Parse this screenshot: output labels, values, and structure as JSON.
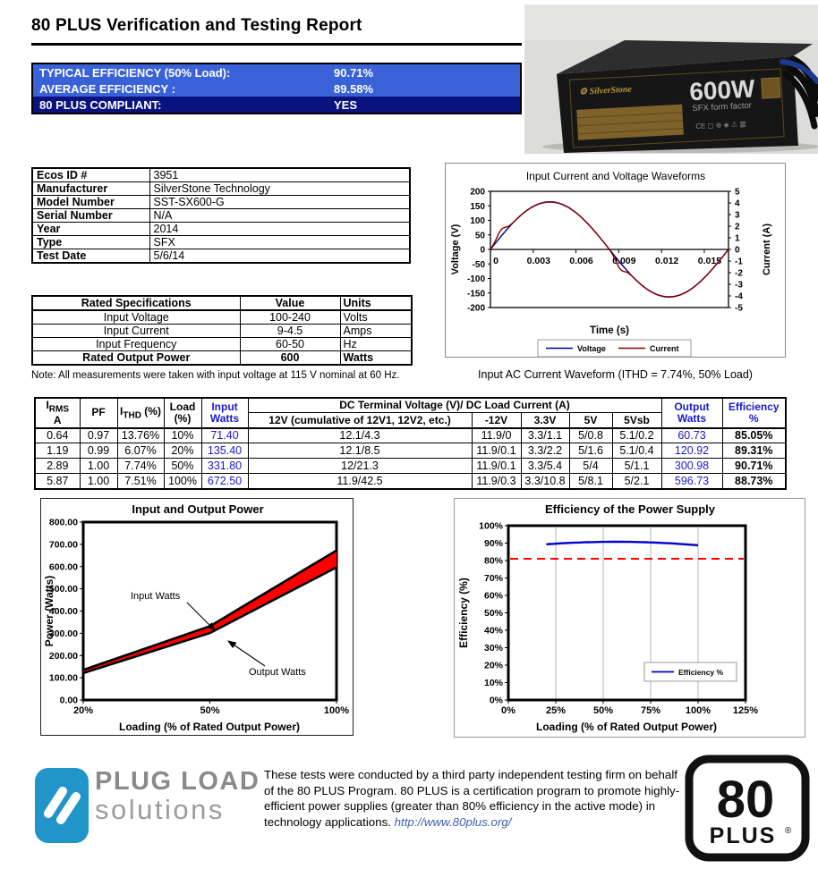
{
  "page": {
    "title": "80 PLUS Verification and Testing Report"
  },
  "summary_banner": {
    "rows": [
      {
        "label": "TYPICAL EFFICIENCY (50% Load):",
        "value": "90.71%"
      },
      {
        "label": "AVERAGE EFFICIENCY :",
        "value": "89.58%"
      },
      {
        "label": "80 PLUS COMPLIANT:",
        "value": "YES"
      }
    ],
    "row_color": "#3a62d8",
    "compliant_row_color": "#0a1280"
  },
  "product_photo": {
    "wattage": "600W",
    "form_factor": "SFX form factor",
    "brand": "SilverStone"
  },
  "product_info": {
    "rows": [
      [
        "Ecos ID #",
        "3951"
      ],
      [
        "Manufacturer",
        "SilverStone Technology"
      ],
      [
        "Model Number",
        "SST-SX600-G"
      ],
      [
        "Serial Number",
        "N/A"
      ],
      [
        "Year",
        "2014"
      ],
      [
        "Type",
        "SFX"
      ],
      [
        "Test Date",
        "5/6/14"
      ]
    ]
  },
  "rated_specs": {
    "headers": [
      "Rated Specifications",
      "Value",
      "Units"
    ],
    "rows": [
      [
        "Input Voltage",
        "100-240",
        "Volts"
      ],
      [
        "Input Current",
        "9-4.5",
        "Amps"
      ],
      [
        "Input Frequency",
        "60-50",
        "Hz"
      ],
      [
        "Rated Output Power",
        "600",
        "Watts"
      ]
    ],
    "note": "Note: All measurements were taken with input voltage at 115 V nominal at 60 Hz."
  },
  "measurements_table": {
    "headers": {
      "irms_i": "I",
      "irms_sub": "RMS",
      "irms_unit": "A",
      "pf": "PF",
      "ithd_i": "I",
      "ithd_sub": "THD",
      "ithd_rest": " (%)",
      "load_l1": "Load",
      "load_l2": "(%)",
      "input_l1": "Input",
      "input_l2": "Watts",
      "dc_group": "DC Terminal Voltage (V)/ DC Load Current (A)",
      "sub_12v": "12V (cumulative of 12V1, 12V2, etc.)",
      "sub_m12v": "-12V",
      "sub_33v": "3.3V",
      "sub_5v": "5V",
      "sub_5vsb": "5Vsb",
      "output_l1": "Output",
      "output_l2": "Watts",
      "eff_l1": "Efficiency",
      "eff_l2": "%"
    },
    "rows": [
      [
        "0.64",
        "0.97",
        "13.76%",
        "10%",
        "71.40",
        "12.1/4.3",
        "11.9/0",
        "3.3/1.1",
        "5/0.8",
        "5.1/0.2",
        "60.73",
        "85.05%"
      ],
      [
        "1.19",
        "0.99",
        "6.07%",
        "20%",
        "135.40",
        "12.1/8.5",
        "11.9/0.1",
        "3.3/2.2",
        "5/1.6",
        "5.1/0.4",
        "120.92",
        "89.31%"
      ],
      [
        "2.89",
        "1.00",
        "7.74%",
        "50%",
        "331.80",
        "12/21.3",
        "11.9/0.1",
        "3.3/5.4",
        "5/4",
        "5/1.1",
        "300.98",
        "90.71%"
      ],
      [
        "5.87",
        "1.00",
        "7.51%",
        "100%",
        "672.50",
        "11.9/42.5",
        "11.9/0.3",
        "3.3/10.8",
        "5/8.1",
        "5/2.1",
        "596.73",
        "88.73%"
      ]
    ]
  },
  "chart_data": [
    {
      "id": "waveform",
      "type": "line",
      "title": "Input Current and Voltage Waveforms",
      "xlabel": "Time (s)",
      "ylabel_left": "Voltage (V)",
      "ylabel_right": "Current (A)",
      "x_range": [
        0,
        0.0167
      ],
      "x_ticks": [
        "0",
        "0.003",
        "0.006",
        "0.009",
        "0.012",
        "0.015"
      ],
      "y_left_range": [
        -200,
        200
      ],
      "y_left_step": 50,
      "y_right_range": [
        -5,
        5
      ],
      "y_right_step": 1,
      "series": [
        {
          "name": "Voltage",
          "color": "#00007e",
          "waveform": "sine",
          "amplitude_V": 163,
          "frequency_hz": 60
        },
        {
          "name": "Current",
          "color": "#8b0000",
          "waveform": "sine-with-crossover-distortion",
          "amplitude_A": 4.1,
          "frequency_hz": 60,
          "crossover_bump_A": 0.55
        }
      ],
      "legend_position": "bottom-center",
      "caption": "Input AC Current Waveform (ITHD = 7.74%, 50% Load)"
    },
    {
      "id": "power",
      "type": "area",
      "title": "Input and Output Power",
      "xlabel": "Loading (% of Rated Output Power)",
      "ylabel": "Power (Watts)",
      "categories": [
        "20%",
        "50%",
        "100%"
      ],
      "series": [
        {
          "name": "Input Watts",
          "values": [
            135.4,
            331.8,
            672.5
          ]
        },
        {
          "name": "Output Watts",
          "values": [
            120.92,
            300.98,
            596.73
          ]
        }
      ],
      "ylim": [
        0,
        800
      ],
      "y_step": 100,
      "fill_color": "#ff0000",
      "line_color": "#000000",
      "annotations": [
        {
          "label": "Input Watts",
          "points_to": "upper line at 50% load"
        },
        {
          "label": "Output Watts",
          "points_to": "lower line at 50% load"
        }
      ]
    },
    {
      "id": "efficiency",
      "type": "line",
      "title": "Efficiency of the Power Supply",
      "xlabel": "Loading (% of Rated Output Power)",
      "ylabel": "Efficiency (%)",
      "x": [
        20,
        50,
        100
      ],
      "values": [
        89.31,
        90.71,
        88.73
      ],
      "xlim": [
        0,
        125
      ],
      "x_step": 25,
      "ylim": [
        0,
        100
      ],
      "y_step": 10,
      "grid": "vertical",
      "threshold_line": {
        "value": 81,
        "color": "#ff0000",
        "style": "dashed"
      },
      "line_color": "#0000cc",
      "legend": {
        "label": "Efficiency %",
        "position": "bottom-right"
      }
    }
  ],
  "footer": {
    "logo": {
      "line1": "PLUG LOAD",
      "line2": "solutions",
      "icon_color": "#1f95c9"
    },
    "text": "These tests were conducted by a third party independent testing firm on behalf of the 80 PLUS Program. 80 PLUS is a certification program to promote highly-efficient power supplies (greater than 80% efficiency in the active mode) in technology applications.",
    "link": "http://www.80plus.org/",
    "badge": {
      "number": "80",
      "word": "PLUS",
      "reg": "®"
    }
  }
}
